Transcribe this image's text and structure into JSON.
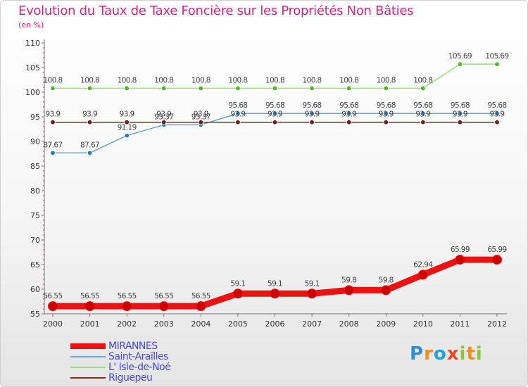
{
  "title": "Evolution du Taux de Taxe Foncière sur les Propriétés Non Bâties",
  "subtitle": "(en %)",
  "logo": {
    "text": "Proxiti",
    "letters": [
      {
        "ch": "P",
        "color": "#2f8fd3"
      },
      {
        "ch": "r",
        "color": "#f28c1a"
      },
      {
        "ch": "o",
        "color": "#1fa3d9"
      },
      {
        "ch": "x",
        "color": "#e94a2a"
      },
      {
        "ch": "i",
        "color": "#8cc63f"
      },
      {
        "ch": "t",
        "color": "#f28c1a"
      },
      {
        "ch": "i",
        "color": "#8cc63f"
      }
    ]
  },
  "chart_data": {
    "type": "line",
    "title": "Evolution du Taux de Taxe Foncière sur les Propriétés Non Bâties",
    "ylabel": "(en %)",
    "xlabel": "",
    "ylim": [
      55,
      110
    ],
    "yticks": [
      55,
      60,
      65,
      70,
      75,
      80,
      85,
      90,
      95,
      100,
      105,
      110
    ],
    "grid": false,
    "legend_position": "bottom-left",
    "x": [
      "2000",
      "2001",
      "2002",
      "2003",
      "2004",
      "2005",
      "2006",
      "2007",
      "2008",
      "2009",
      "2010",
      "2011",
      "2012"
    ],
    "series": [
      {
        "name": "MIRANNES",
        "color": "#ee1111",
        "marker_color": "#cc0000",
        "values": [
          56.55,
          56.55,
          56.55,
          56.55,
          56.55,
          59.1,
          59.1,
          59.1,
          59.8,
          59.8,
          62.94,
          65.99,
          65.99
        ],
        "labels": [
          "56.55",
          "56.55",
          "56.55",
          "56.55",
          "56.55",
          "59.1",
          "59.1",
          "59.1",
          "59.8",
          "59.8",
          "62.94",
          "65.99",
          "65.99"
        ]
      },
      {
        "name": "Saint-Araïlles",
        "color": "#6ea3d0",
        "marker_color": "#2f78b8",
        "values": [
          87.67,
          87.67,
          91.19,
          93.37,
          93.37,
          95.68,
          95.68,
          95.68,
          95.68,
          95.68,
          95.68,
          95.68,
          95.68
        ],
        "labels": [
          "87.67",
          "87.67",
          "91.19",
          "93.37",
          "93.37",
          "95.68",
          "95.68",
          "95.68",
          "95.68",
          "95.68",
          "95.68",
          "95.68",
          "95.68"
        ]
      },
      {
        "name": "L' Isle-de-Noé",
        "color": "#9be07a",
        "marker_color": "#4fb82a",
        "values": [
          100.8,
          100.8,
          100.8,
          100.8,
          100.8,
          100.8,
          100.8,
          100.8,
          100.8,
          100.8,
          100.8,
          105.69,
          105.69
        ],
        "labels": [
          "100.8",
          "100.8",
          "100.8",
          "100.8",
          "100.8",
          "100.8",
          "100.8",
          "100.8",
          "100.8",
          "100.8",
          "100.8",
          "105.69",
          "105.69"
        ]
      },
      {
        "name": "Riguepeu",
        "color": "#7b2a2a",
        "marker_color": "#6a1f1f",
        "values": [
          93.9,
          93.9,
          93.9,
          93.9,
          93.9,
          93.9,
          93.9,
          93.9,
          93.9,
          93.9,
          93.9,
          93.9,
          93.9
        ],
        "labels": [
          "93.9",
          "93.9",
          "93.9",
          "93.9",
          "93.9",
          "93.9",
          "93.9",
          "93.9",
          "93.9",
          "93.9",
          "93.9",
          "93.9",
          "93.9"
        ]
      }
    ]
  }
}
